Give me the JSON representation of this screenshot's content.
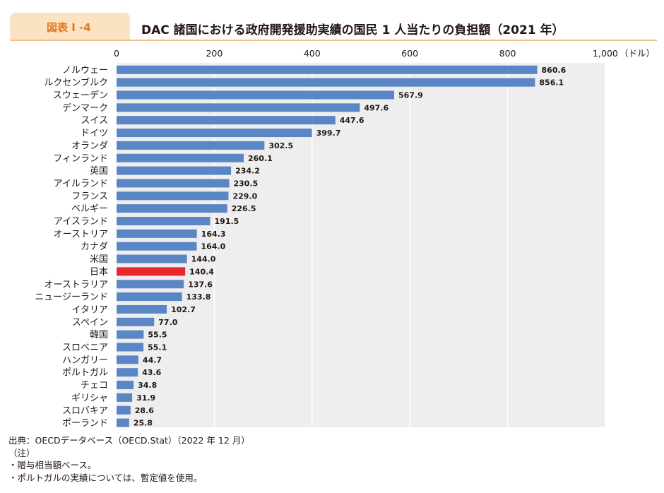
{
  "figure": {
    "label": "図表 I -4",
    "title": "DAC 諸国における政府開発援助実績の国民 1 人当たりの負担額（2021 年）"
  },
  "chart_data": {
    "type": "bar",
    "orientation": "horizontal",
    "x_axis_unit": "（ドル）",
    "xlim": [
      0,
      1000
    ],
    "x_ticks": [
      0,
      200,
      400,
      600,
      800,
      1000
    ],
    "x_tick_labels": [
      "0",
      "200",
      "400",
      "600",
      "800",
      "1,000"
    ],
    "categories": [
      "ノルウェー",
      "ルクセンブルク",
      "スウェーデン",
      "デンマーク",
      "スイス",
      "ドイツ",
      "オランダ",
      "フィンランド",
      "英国",
      "アイルランド",
      "フランス",
      "ベルギー",
      "アイスランド",
      "オーストリア",
      "カナダ",
      "米国",
      "日本",
      "オーストラリア",
      "ニュージーランド",
      "イタリア",
      "スペイン",
      "韓国",
      "スロベニア",
      "ハンガリー",
      "ポルトガル",
      "チェコ",
      "ギリシャ",
      "スロバキア",
      "ポーランド"
    ],
    "values": [
      860.6,
      856.1,
      567.9,
      497.6,
      447.6,
      399.7,
      302.5,
      260.1,
      234.2,
      230.5,
      229.0,
      226.5,
      191.5,
      164.3,
      164.0,
      144.0,
      140.4,
      137.6,
      133.8,
      102.7,
      77.0,
      55.5,
      55.1,
      44.7,
      43.6,
      34.8,
      31.9,
      28.6,
      25.8
    ],
    "value_labels": [
      "860.6",
      "856.1",
      "567.9",
      "497.6",
      "447.6",
      "399.7",
      "302.5",
      "260.1",
      "234.2",
      "230.5",
      "229.0",
      "226.5",
      "191.5",
      "164.3",
      "164.0",
      "144.0",
      "140.4",
      "137.6",
      "133.8",
      "102.7",
      "77.0",
      "55.5",
      "55.1",
      "44.7",
      "43.6",
      "34.8",
      "31.9",
      "28.6",
      "25.8"
    ],
    "highlight_category": "日本",
    "bar_color": "#5b86c5",
    "highlight_color": "#e8282e",
    "plot_background": "#eeeeef",
    "grid": true
  },
  "footer": {
    "source": "出典：OECDデータベース（OECD.Stat）（2022 年 12 月）",
    "note_heading": "（注）",
    "notes": [
      "・贈与相当額ベース。",
      "・ポルトガルの実績については、暫定値を使用。"
    ]
  }
}
